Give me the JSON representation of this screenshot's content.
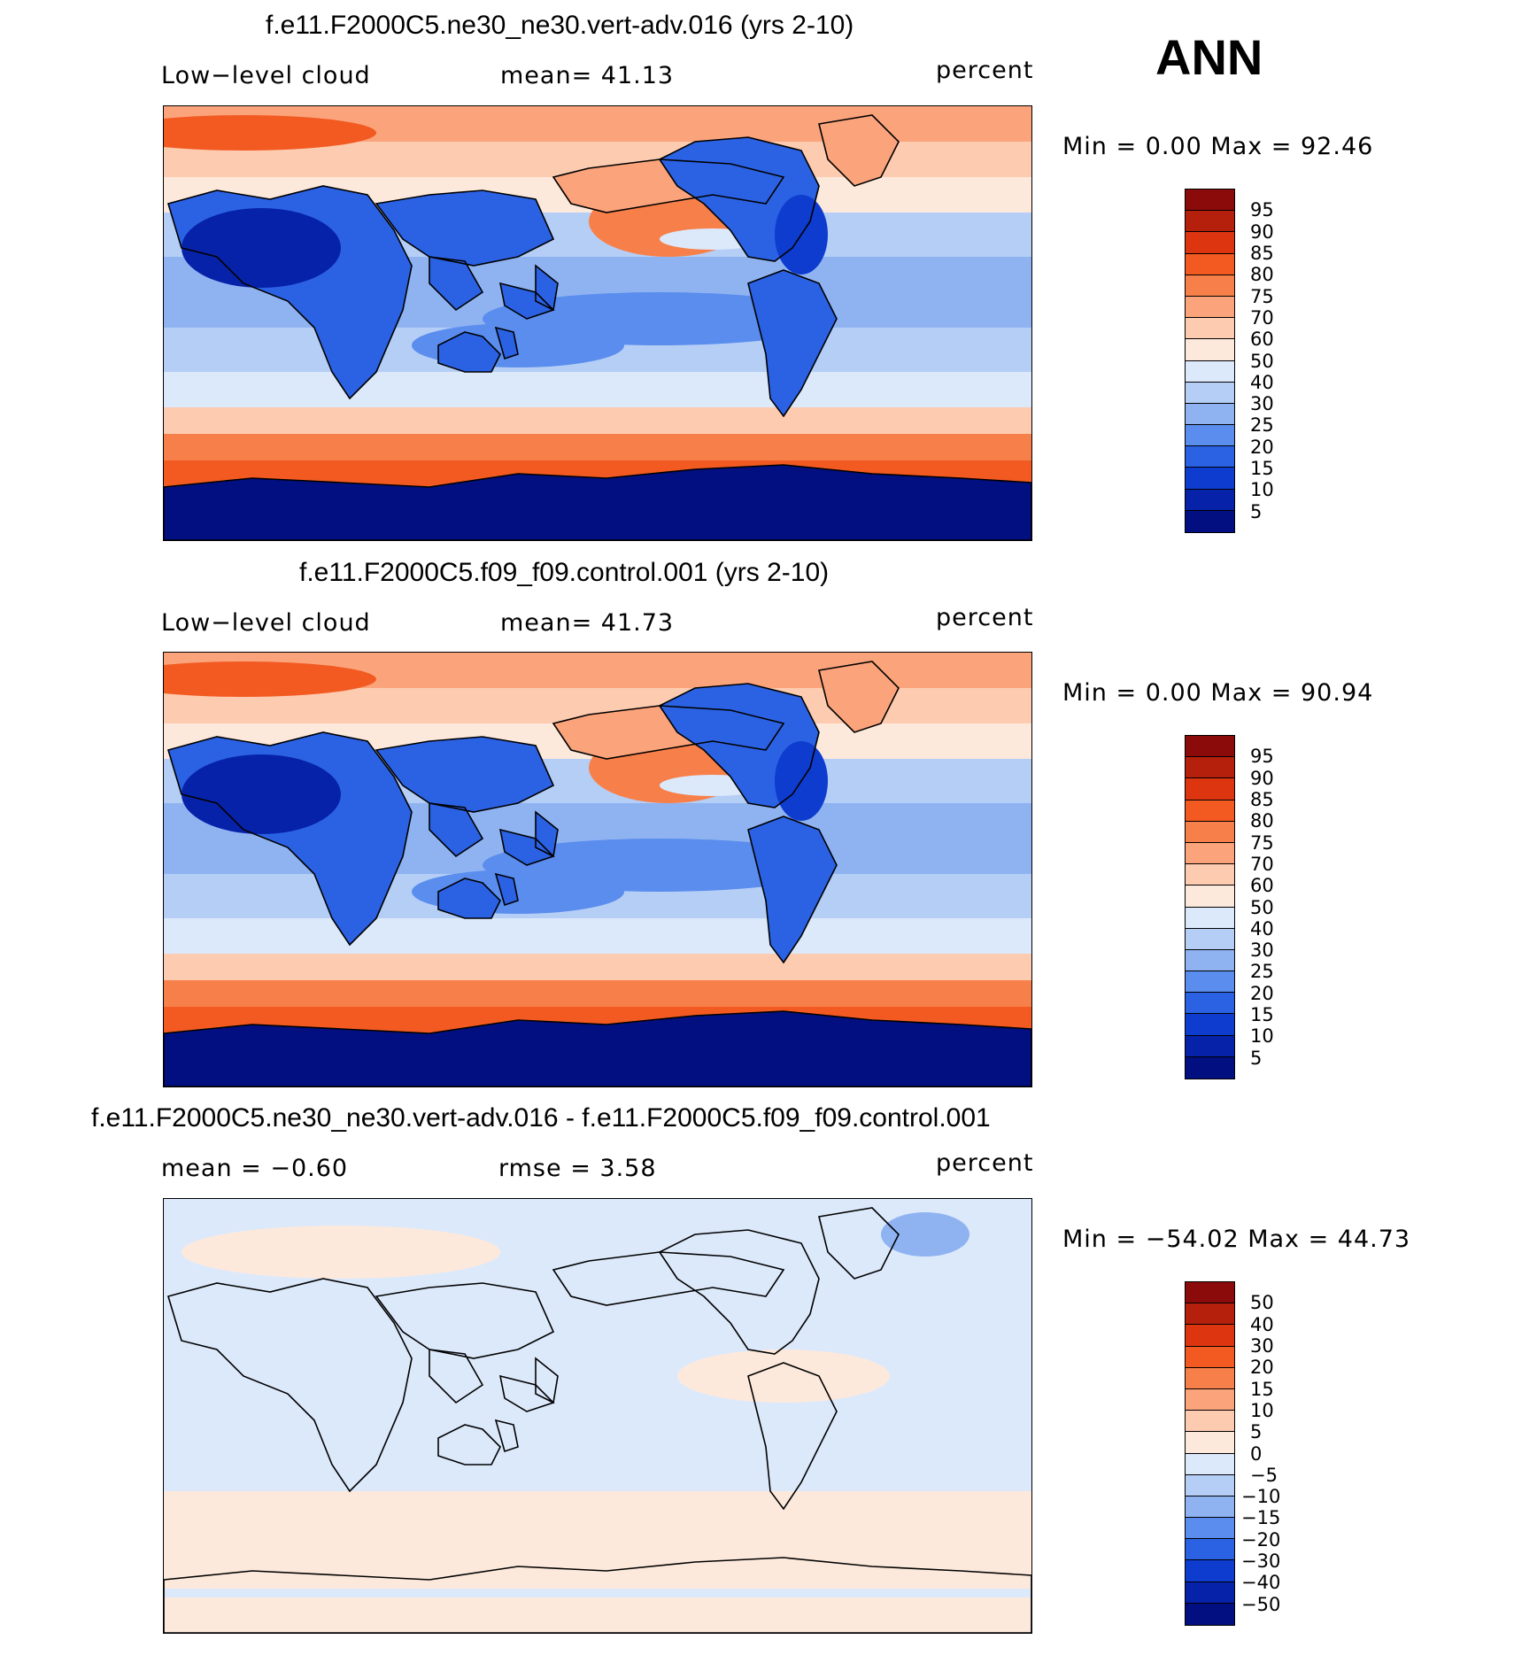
{
  "season": "ANN",
  "panels": [
    {
      "title": "f.e11.F2000C5.ne30_ne30.vert-adv.016 (yrs 2-10)",
      "left_label": "Low−level cloud",
      "center_label": "mean=   41.13",
      "units": "percent",
      "minmax": "Min =     0.00 Max =   92.46",
      "palette": "abs"
    },
    {
      "title": "f.e11.F2000C5.f09_f09.control.001 (yrs 2-10)",
      "left_label": "Low−level cloud",
      "center_label": "mean=   41.73",
      "units": "percent",
      "minmax": "Min =     0.00 Max =   90.94",
      "palette": "abs"
    },
    {
      "title": "f.e11.F2000C5.ne30_ne30.vert-adv.016 - f.e11.F2000C5.f09_f09.control.001",
      "left_label": "mean =   −0.60",
      "center_label": "rmse =     3.58",
      "units": "percent",
      "minmax": "Min = −54.02 Max =   44.73",
      "palette": "diff"
    }
  ],
  "colorbars": {
    "abs": {
      "labels": [
        "95",
        "90",
        "85",
        "80",
        "75",
        "70",
        "60",
        "50",
        "40",
        "30",
        "25",
        "20",
        "15",
        "10",
        "5"
      ],
      "colors": [
        "#8b0a0a",
        "#b5200d",
        "#dc3510",
        "#f25a22",
        "#f7804a",
        "#fba47c",
        "#fdcbb0",
        "#fde9dc",
        "#dce9fb",
        "#b5cef6",
        "#8fb3f1",
        "#5a8ded",
        "#2b62e4",
        "#0d3ccf",
        "#0622a8",
        "#020f80"
      ]
    },
    "diff": {
      "labels": [
        "50",
        "40",
        "30",
        "20",
        "15",
        "10",
        "5",
        "0",
        "−5",
        "−10",
        "−15",
        "−20",
        "−30",
        "−40",
        "−50"
      ],
      "colors": [
        "#8b0a0a",
        "#b5200d",
        "#dc3510",
        "#f25a22",
        "#f7804a",
        "#fba47c",
        "#fdcbb0",
        "#fde9dc",
        "#dce9fb",
        "#b5cef6",
        "#8fb3f1",
        "#5a8ded",
        "#2b62e4",
        "#0d3ccf",
        "#0622a8",
        "#020f80"
      ]
    }
  }
}
